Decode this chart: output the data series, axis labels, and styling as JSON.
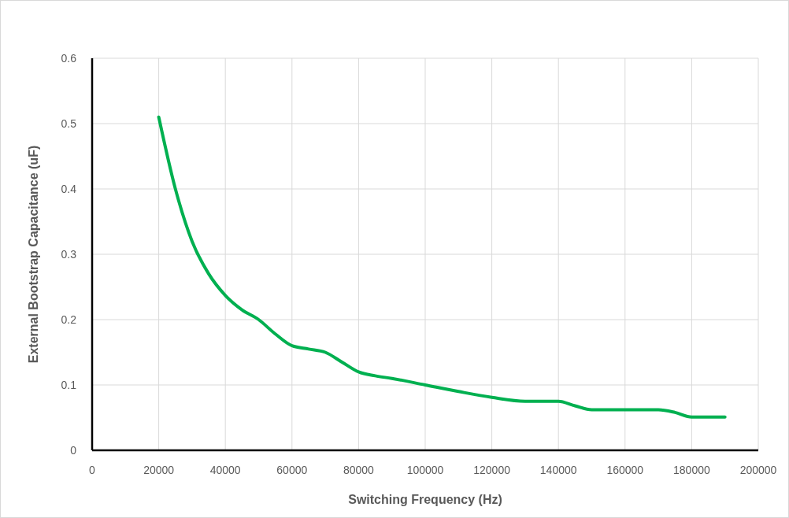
{
  "chart_data": {
    "type": "line",
    "xlabel": "Switching Frequency (Hz)",
    "ylabel": "External Bootstrap Capacitance (uF)",
    "x": [
      20000,
      25000,
      30000,
      35000,
      40000,
      45000,
      50000,
      55000,
      60000,
      65000,
      70000,
      75000,
      80000,
      85000,
      90000,
      100000,
      110000,
      120000,
      130000,
      140000,
      145000,
      150000,
      160000,
      170000,
      175000,
      180000,
      190000
    ],
    "series": [
      {
        "color": "#00b050",
        "values": [
          0.51,
          0.4,
          0.32,
          0.27,
          0.237,
          0.215,
          0.2,
          0.178,
          0.16,
          0.155,
          0.15,
          0.135,
          0.12,
          0.114,
          0.11,
          0.1,
          0.09,
          0.081,
          0.075,
          0.075,
          0.068,
          0.062,
          0.062,
          0.062,
          0.058,
          0.051,
          0.051
        ]
      }
    ],
    "xlim": [
      0,
      200000
    ],
    "ylim": [
      0,
      0.6
    ],
    "xticks": [
      0,
      20000,
      40000,
      60000,
      80000,
      100000,
      120000,
      140000,
      160000,
      180000,
      200000
    ],
    "yticks": [
      0,
      0.1,
      0.2,
      0.3,
      0.4,
      0.5,
      0.6
    ],
    "grid": true,
    "marker": "none",
    "line_style": "solid"
  }
}
